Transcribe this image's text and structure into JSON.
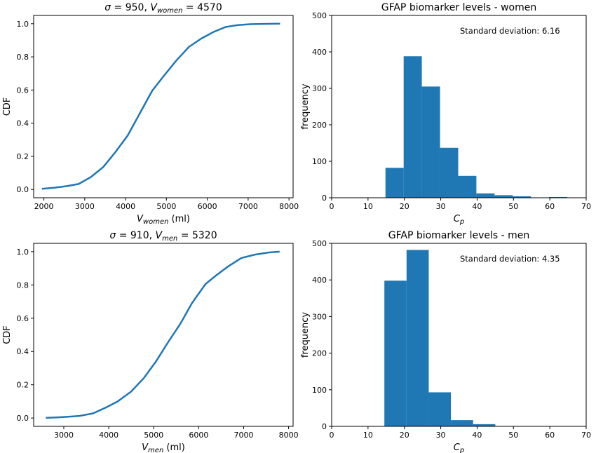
{
  "chart_data": [
    {
      "type": "line",
      "title": "σ = 950, V_women = 4570",
      "title_parts": {
        "sigma": "σ",
        "eq1": " = 950, ",
        "v": "V",
        "sub": "women",
        "eq2": " = 4570"
      },
      "xlabel_parts": {
        "v": "V",
        "sub": "women",
        "unit": " (ml)"
      },
      "ylabel": "CDF",
      "xlim": [
        1750,
        8100
      ],
      "ylim": [
        -0.05,
        1.05
      ],
      "xticks": [
        2000,
        3000,
        4000,
        5000,
        6000,
        7000,
        8000
      ],
      "yticks": [
        0.0,
        0.2,
        0.4,
        0.6,
        0.8,
        1.0
      ],
      "series": [
        {
          "x": [
            1950,
            2250,
            2550,
            2850,
            3150,
            3450,
            3750,
            4050,
            4350,
            4650,
            4950,
            5250,
            5550,
            5850,
            6150,
            6450,
            6750,
            7050,
            7350,
            7780
          ],
          "y": [
            0.004,
            0.01,
            0.02,
            0.033,
            0.075,
            0.135,
            0.225,
            0.325,
            0.46,
            0.595,
            0.69,
            0.78,
            0.86,
            0.91,
            0.95,
            0.98,
            0.992,
            0.997,
            0.999,
            1.0
          ]
        }
      ]
    },
    {
      "type": "bar",
      "title": "GFAP biomarker levels - women",
      "annotation": "Standard deviation: 6.16",
      "xlabel_parts": {
        "c": "C",
        "sub": "p"
      },
      "ylabel": "frequency",
      "xlim": [
        0,
        70
      ],
      "ylim": [
        0,
        500
      ],
      "xticks": [
        0,
        10,
        20,
        30,
        40,
        50,
        60,
        70
      ],
      "yticks": [
        0,
        100,
        200,
        300,
        400,
        500
      ],
      "bins": [
        [
          14.8,
          19.8,
          82
        ],
        [
          19.8,
          24.8,
          388
        ],
        [
          24.8,
          29.8,
          305
        ],
        [
          29.8,
          34.8,
          137
        ],
        [
          34.8,
          39.8,
          60
        ],
        [
          39.8,
          44.8,
          12
        ],
        [
          44.8,
          49.8,
          7
        ],
        [
          49.8,
          54.8,
          4
        ],
        [
          54.8,
          59.8,
          0
        ],
        [
          59.8,
          64.8,
          2
        ]
      ]
    },
    {
      "type": "line",
      "title": "σ = 910, V_men = 5320",
      "title_parts": {
        "sigma": "σ",
        "eq1": " = 910, ",
        "v": "V",
        "sub": "men",
        "eq2": " = 5320"
      },
      "xlabel_parts": {
        "v": "V",
        "sub": "men",
        "unit": " (ml)"
      },
      "ylabel": "CDF",
      "xlim": [
        2330,
        8100
      ],
      "ylim": [
        -0.05,
        1.05
      ],
      "xticks": [
        3000,
        4000,
        5000,
        6000,
        7000,
        8000
      ],
      "yticks": [
        0.0,
        0.2,
        0.4,
        0.6,
        0.8,
        1.0
      ],
      "series": [
        {
          "x": [
            2600,
            2850,
            3100,
            3350,
            3650,
            3950,
            4200,
            4500,
            4780,
            5050,
            5330,
            5600,
            5850,
            6150,
            6400,
            6650,
            6950,
            7250,
            7550,
            7800
          ],
          "y": [
            0.001,
            0.004,
            0.008,
            0.013,
            0.028,
            0.065,
            0.1,
            0.16,
            0.24,
            0.34,
            0.46,
            0.57,
            0.69,
            0.805,
            0.86,
            0.91,
            0.962,
            0.982,
            0.995,
            1.0
          ]
        }
      ]
    },
    {
      "type": "bar",
      "title": "GFAP biomarker levels - men",
      "annotation": "Standard deviation: 4.35",
      "xlabel_parts": {
        "c": "C",
        "sub": "p"
      },
      "ylabel": "frequency",
      "xlim": [
        0,
        70
      ],
      "ylim": [
        0,
        500
      ],
      "xticks": [
        0,
        10,
        20,
        30,
        40,
        50,
        60,
        70
      ],
      "yticks": [
        0,
        100,
        200,
        300,
        400,
        500
      ],
      "bins": [
        [
          14.5,
          20.6,
          398
        ],
        [
          20.6,
          26.7,
          482
        ],
        [
          26.7,
          32.8,
          93
        ],
        [
          32.8,
          38.9,
          17
        ],
        [
          38.9,
          45.0,
          6
        ]
      ]
    }
  ]
}
